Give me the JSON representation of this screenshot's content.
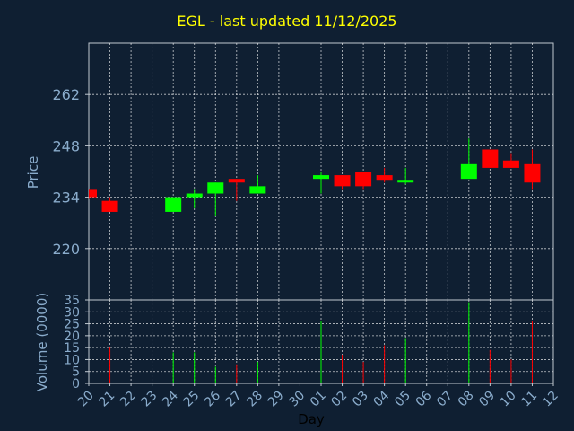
{
  "chart_data": {
    "type": "candlestick",
    "title": "EGL - last updated 11/12/2025",
    "xlabel": "Day",
    "price_panel": {
      "ylabel": "Price",
      "ylim": [
        206,
        276
      ],
      "yticks": [
        220,
        234,
        248,
        262
      ]
    },
    "volume_panel": {
      "ylabel": "Volume (0000)",
      "ylim": [
        0,
        35
      ],
      "yticks": [
        0,
        5,
        10,
        15,
        20,
        25,
        30,
        35
      ]
    },
    "colors": {
      "up": "#00ff00",
      "down": "#ff0000",
      "background": "#0f1f32",
      "grid": "#ffffff",
      "title": "#ffff00",
      "tick": "#8aaccc"
    },
    "categories": [
      "20",
      "21",
      "22",
      "23",
      "24",
      "25",
      "26",
      "27",
      "28",
      "29",
      "30",
      "01",
      "02",
      "03",
      "04",
      "05",
      "06",
      "07",
      "08",
      "09",
      "10",
      "11",
      "12"
    ],
    "candles": [
      {
        "x": "20",
        "open": 236,
        "high": 236,
        "low": 233.5,
        "close": 234,
        "volume": 0
      },
      {
        "x": "21",
        "open": 233,
        "high": 234,
        "low": 230,
        "close": 230,
        "volume": 15
      },
      {
        "x": "24",
        "open": 230,
        "high": 234,
        "low": 230,
        "close": 234,
        "volume": 13
      },
      {
        "x": "25",
        "open": 234,
        "high": 236,
        "low": 231,
        "close": 235,
        "volume": 13
      },
      {
        "x": "26",
        "open": 235,
        "high": 238,
        "low": 229,
        "close": 238,
        "volume": 7
      },
      {
        "x": "27",
        "open": 239,
        "high": 239,
        "low": 233,
        "close": 238,
        "volume": 8
      },
      {
        "x": "28",
        "open": 235,
        "high": 240,
        "low": 235,
        "close": 237,
        "volume": 9
      },
      {
        "x": "01",
        "open": 239,
        "high": 241,
        "low": 235,
        "close": 240,
        "volume": 26
      },
      {
        "x": "02",
        "open": 240,
        "high": 240,
        "low": 236,
        "close": 237,
        "volume": 12
      },
      {
        "x": "03",
        "open": 241,
        "high": 241,
        "low": 236,
        "close": 237,
        "volume": 9
      },
      {
        "x": "04",
        "open": 240,
        "high": 242,
        "low": 238,
        "close": 238.5,
        "volume": 16
      },
      {
        "x": "05",
        "open": 238,
        "high": 242,
        "low": 237.5,
        "close": 238.5,
        "volume": 19
      },
      {
        "x": "08",
        "open": 239,
        "high": 250,
        "low": 239,
        "close": 243,
        "volume": 34
      },
      {
        "x": "09",
        "open": 247,
        "high": 247,
        "low": 242,
        "close": 242,
        "volume": 14
      },
      {
        "x": "10",
        "open": 244,
        "high": 246,
        "low": 242,
        "close": 242,
        "volume": 10
      },
      {
        "x": "11",
        "open": 243,
        "high": 247,
        "low": 236,
        "close": 238,
        "volume": 26
      }
    ]
  }
}
